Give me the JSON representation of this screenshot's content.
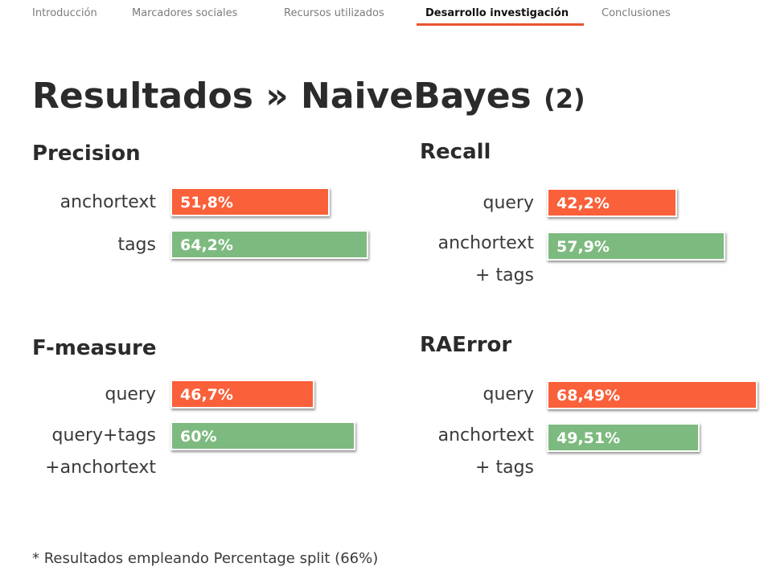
{
  "nav": {
    "items": [
      {
        "label": "Introducción",
        "active": false
      },
      {
        "label": "Marcadores sociales",
        "active": false
      },
      {
        "label": "Recursos utilizados",
        "active": false
      },
      {
        "label": "Desarrollo investigación",
        "active": true
      },
      {
        "label": "Conclusiones",
        "active": false
      }
    ],
    "accent_color": "#e85530"
  },
  "slide": {
    "title": "Resultados » NaiveBayes",
    "title_suffix": "(2)",
    "footnote": "* Resultados empleando Percentage split (66%)"
  },
  "colors": {
    "bar_red": "#fa6039",
    "bar_green": "#7dba7f"
  },
  "sections": [
    {
      "title": "Precision",
      "rows": [
        {
          "label": "anchortext",
          "value": 51.8,
          "value_label": "51,8%",
          "color": "#fa6039"
        },
        {
          "label": "tags",
          "value": 64.2,
          "value_label": "64,2%",
          "color": "#7dba7f"
        }
      ]
    },
    {
      "title": "Recall",
      "rows": [
        {
          "label": "query",
          "value": 42.2,
          "value_label": "42,2%",
          "color": "#fa6039"
        },
        {
          "label": "anchortext\n+ tags",
          "value": 57.9,
          "value_label": "57,9%",
          "color": "#7dba7f"
        }
      ]
    },
    {
      "title": "F-measure",
      "rows": [
        {
          "label": "query",
          "value": 46.7,
          "value_label": "46,7%",
          "color": "#fa6039"
        },
        {
          "label": "query+tags\n+anchortext",
          "value": 60,
          "value_label": "60%",
          "color": "#7dba7f"
        }
      ]
    },
    {
      "title": "RAError",
      "rows": [
        {
          "label": "query",
          "value": 68.49,
          "value_label": "68,49%",
          "color": "#fa6039"
        },
        {
          "label": "anchortext\n+ tags",
          "value": 49.51,
          "value_label": "49,51%",
          "color": "#7dba7f"
        }
      ]
    }
  ]
}
